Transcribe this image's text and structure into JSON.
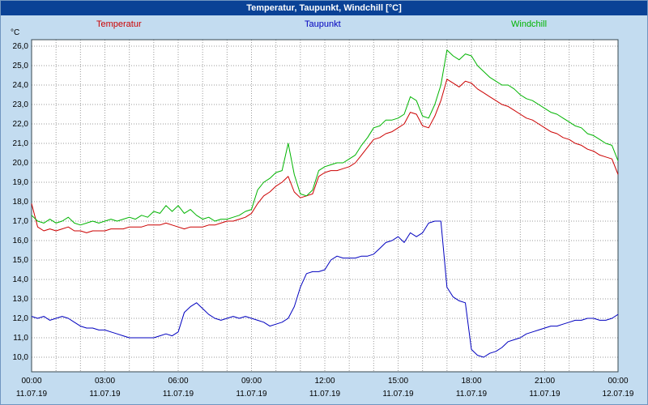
{
  "window": {
    "title": "Temperatur, Taupunkt, Windchill [°C]"
  },
  "legend": {
    "items": [
      {
        "label": "Temperatur",
        "color": "#cc0000"
      },
      {
        "label": "Taupunkt",
        "color": "#0000bf"
      },
      {
        "label": "Windchill",
        "color": "#00b400"
      }
    ]
  },
  "chart_data": {
    "type": "line",
    "title": "Temperatur, Taupunkt, Windchill [°C]",
    "unit_label": "°C",
    "grid": true,
    "x_axis": {
      "start_hour": 0,
      "end_hour": 24,
      "step_hours": 0.25,
      "grid_interval_hours": 1,
      "tick_times": [
        "00:00",
        "03:00",
        "06:00",
        "09:00",
        "12:00",
        "15:00",
        "18:00",
        "21:00",
        "00:00"
      ],
      "tick_dates": [
        "11.07.19",
        "11.07.19",
        "11.07.19",
        "11.07.19",
        "11.07.19",
        "11.07.19",
        "11.07.19",
        "11.07.19",
        "12.07.19"
      ]
    },
    "y_axis": {
      "min": 10,
      "max": 26,
      "tick_step": 1,
      "decimal": "comma",
      "labels": [
        "26,0",
        "25,0",
        "24,0",
        "23,0",
        "22,0",
        "21,0",
        "20,0",
        "19,0",
        "18,0",
        "17,0",
        "16,0",
        "15,0",
        "14,0",
        "13,0",
        "12,0",
        "11,0",
        "10,0"
      ]
    },
    "ylim_drawn": [
      9.25,
      26.33
    ],
    "series": [
      {
        "name": "Temperatur",
        "color": "#cc0000",
        "values": [
          17.9,
          16.7,
          16.5,
          16.6,
          16.5,
          16.6,
          16.7,
          16.5,
          16.5,
          16.4,
          16.5,
          16.5,
          16.5,
          16.6,
          16.6,
          16.6,
          16.7,
          16.7,
          16.7,
          16.8,
          16.8,
          16.8,
          16.9,
          16.8,
          16.7,
          16.6,
          16.7,
          16.7,
          16.7,
          16.8,
          16.8,
          16.9,
          17.0,
          17.0,
          17.1,
          17.2,
          17.4,
          17.9,
          18.3,
          18.5,
          18.8,
          19.0,
          19.3,
          18.5,
          18.2,
          18.3,
          18.4,
          19.3,
          19.5,
          19.6,
          19.6,
          19.7,
          19.8,
          20.0,
          20.4,
          20.8,
          21.2,
          21.3,
          21.5,
          21.6,
          21.8,
          22.0,
          22.6,
          22.5,
          21.9,
          21.8,
          22.4,
          23.2,
          24.3,
          24.1,
          23.9,
          24.2,
          24.1,
          23.8,
          23.6,
          23.4,
          23.2,
          23.0,
          22.9,
          22.7,
          22.5,
          22.3,
          22.2,
          22.0,
          21.8,
          21.6,
          21.5,
          21.3,
          21.2,
          21.0,
          20.9,
          20.7,
          20.6,
          20.4,
          20.3,
          20.2,
          19.4
        ]
      },
      {
        "name": "Taupunkt",
        "color": "#0000bf",
        "values": [
          12.1,
          12.0,
          12.1,
          11.9,
          12.0,
          12.1,
          12.0,
          11.8,
          11.6,
          11.5,
          11.5,
          11.4,
          11.4,
          11.3,
          11.2,
          11.1,
          11.0,
          11.0,
          11.0,
          11.0,
          11.0,
          11.1,
          11.2,
          11.1,
          11.3,
          12.3,
          12.6,
          12.8,
          12.5,
          12.2,
          12.0,
          11.9,
          12.0,
          12.1,
          12.0,
          12.1,
          12.0,
          11.9,
          11.8,
          11.6,
          11.7,
          11.8,
          12.0,
          12.6,
          13.6,
          14.3,
          14.4,
          14.4,
          14.5,
          15.0,
          15.2,
          15.1,
          15.1,
          15.1,
          15.2,
          15.2,
          15.3,
          15.6,
          15.9,
          16.0,
          16.2,
          15.9,
          16.4,
          16.2,
          16.4,
          16.9,
          17.0,
          17.0,
          13.6,
          13.1,
          12.9,
          12.8,
          10.4,
          10.1,
          10.0,
          10.2,
          10.3,
          10.5,
          10.8,
          10.9,
          11.0,
          11.2,
          11.3,
          11.4,
          11.5,
          11.6,
          11.6,
          11.7,
          11.8,
          11.9,
          11.9,
          12.0,
          12.0,
          11.9,
          11.9,
          12.0,
          12.2
        ]
      },
      {
        "name": "Windchill",
        "color": "#00b400",
        "values": [
          17.3,
          17.0,
          16.9,
          17.1,
          16.9,
          17.0,
          17.2,
          16.9,
          16.8,
          16.9,
          17.0,
          16.9,
          17.0,
          17.1,
          17.0,
          17.1,
          17.2,
          17.1,
          17.3,
          17.2,
          17.5,
          17.4,
          17.8,
          17.5,
          17.8,
          17.4,
          17.6,
          17.3,
          17.1,
          17.2,
          17.0,
          17.1,
          17.1,
          17.2,
          17.3,
          17.5,
          17.6,
          18.6,
          19.0,
          19.2,
          19.5,
          19.6,
          21.0,
          19.4,
          18.4,
          18.3,
          18.6,
          19.6,
          19.8,
          19.9,
          20.0,
          20.0,
          20.2,
          20.4,
          20.9,
          21.3,
          21.8,
          21.9,
          22.2,
          22.2,
          22.3,
          22.5,
          23.4,
          23.2,
          22.4,
          22.3,
          23.0,
          24.0,
          25.8,
          25.5,
          25.3,
          25.6,
          25.5,
          25.0,
          24.7,
          24.4,
          24.2,
          24.0,
          24.0,
          23.8,
          23.5,
          23.3,
          23.2,
          23.0,
          22.8,
          22.6,
          22.5,
          22.3,
          22.1,
          21.9,
          21.8,
          21.5,
          21.4,
          21.2,
          21.0,
          20.9,
          20.1
        ]
      }
    ]
  }
}
